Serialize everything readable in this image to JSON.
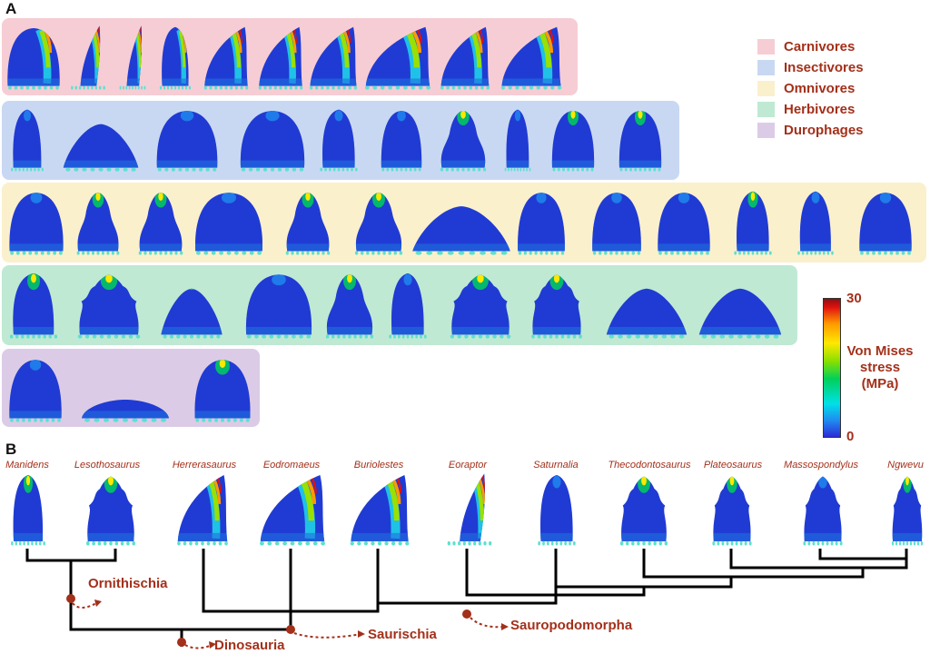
{
  "panel_a_label": "A",
  "panel_b_label": "B",
  "legend": [
    {
      "label": "Carnivores",
      "color": "#f6cdd4"
    },
    {
      "label": "Insectivores",
      "color": "#c9d8f2"
    },
    {
      "label": "Omnivores",
      "color": "#fbf0cc"
    },
    {
      "label": "Herbivores",
      "color": "#bfe9d3"
    },
    {
      "label": "Durophages",
      "color": "#dccbe6"
    }
  ],
  "colorbar": {
    "max_label": "30",
    "min_label": "0",
    "title": "Von Mises stress (MPa)"
  },
  "phylogeny": {
    "taxa": [
      "Manidens",
      "Lesothosaurus",
      "Herrerasaurus",
      "Eodromaeus",
      "Buriolestes",
      "Eoraptor",
      "Saturnalia",
      "Thecodontosaurus",
      "Plateosaurus",
      "Massospondylus",
      "Ngwevu"
    ],
    "clades": [
      "Ornithischia",
      "Dinosauria",
      "Saurischia",
      "Sauropodomorpha"
    ]
  }
}
